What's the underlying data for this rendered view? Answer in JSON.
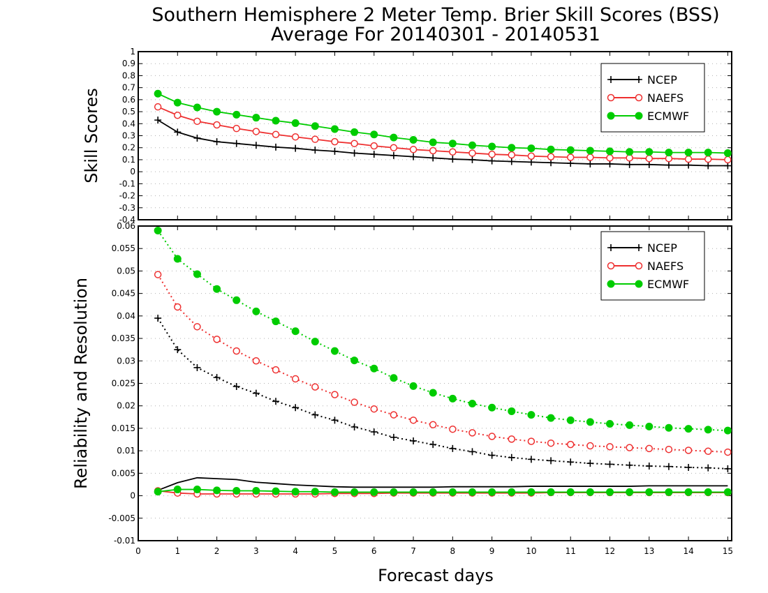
{
  "figure": {
    "title_line1": "Southern Hemisphere 2 Meter Temp. Brier Skill Scores (BSS)",
    "title_line2": "Average For 20140301 - 20140531",
    "xlabel": "Forecast days",
    "colors": {
      "NCEP": "#000000",
      "NAEFS": "#ee3030",
      "ECMWF": "#00cc00"
    }
  },
  "chart_data": [
    {
      "type": "line",
      "ylabel": "Skill Scores",
      "xlim": [
        0,
        15.1
      ],
      "ylim": [
        -0.4,
        1
      ],
      "x_ticks": [
        0,
        1,
        2,
        3,
        4,
        5,
        6,
        7,
        8,
        9,
        10,
        11,
        12,
        13,
        14,
        15
      ],
      "y_ticks": [
        "1",
        "0.9",
        "0.8",
        "0.7",
        "0.6",
        "0.5",
        "0.4",
        "0.3",
        "0.2",
        "0.1",
        "0",
        "-0.1",
        "-0.2",
        "-0.3",
        "-0.4"
      ],
      "y_tick_values": [
        1,
        0.9,
        0.8,
        0.7,
        0.6,
        0.5,
        0.4,
        0.3,
        0.2,
        0.1,
        0,
        -0.1,
        -0.2,
        -0.3,
        -0.4
      ],
      "grid": true,
      "legend": {
        "placement": "top-right",
        "entries": [
          "NCEP",
          "NAEFS",
          "ECMWF"
        ]
      },
      "x": [
        0.5,
        1,
        1.5,
        2,
        2.5,
        3,
        3.5,
        4,
        4.5,
        5,
        5.5,
        6,
        6.5,
        7,
        7.5,
        8,
        8.5,
        9,
        9.5,
        10,
        10.5,
        11,
        11.5,
        12,
        12.5,
        13,
        13.5,
        14,
        14.5,
        15
      ],
      "series": [
        {
          "name": "NCEP",
          "marker": "plus",
          "line": "solid",
          "values": [
            0.43,
            0.33,
            0.28,
            0.25,
            0.235,
            0.22,
            0.205,
            0.195,
            0.18,
            0.17,
            0.155,
            0.145,
            0.135,
            0.125,
            0.115,
            0.105,
            0.1,
            0.09,
            0.085,
            0.08,
            0.075,
            0.07,
            0.065,
            0.065,
            0.06,
            0.06,
            0.055,
            0.055,
            0.05,
            0.05
          ]
        },
        {
          "name": "NAEFS",
          "marker": "open-circle",
          "line": "solid",
          "values": [
            0.54,
            0.47,
            0.42,
            0.39,
            0.36,
            0.335,
            0.31,
            0.29,
            0.27,
            0.25,
            0.235,
            0.215,
            0.2,
            0.185,
            0.175,
            0.165,
            0.155,
            0.145,
            0.14,
            0.13,
            0.125,
            0.12,
            0.12,
            0.115,
            0.115,
            0.11,
            0.11,
            0.105,
            0.105,
            0.1
          ]
        },
        {
          "name": "ECMWF",
          "marker": "filled-circle",
          "line": "solid",
          "values": [
            0.65,
            0.575,
            0.535,
            0.5,
            0.475,
            0.45,
            0.425,
            0.405,
            0.38,
            0.355,
            0.33,
            0.31,
            0.285,
            0.265,
            0.245,
            0.235,
            0.22,
            0.21,
            0.2,
            0.195,
            0.185,
            0.18,
            0.175,
            0.17,
            0.165,
            0.165,
            0.16,
            0.16,
            0.16,
            0.155
          ]
        }
      ]
    },
    {
      "type": "line",
      "ylabel": "Reliability and Resolution",
      "xlim": [
        0,
        15.1
      ],
      "ylim": [
        -0.01,
        0.06
      ],
      "x_ticks": [
        0,
        1,
        2,
        3,
        4,
        5,
        6,
        7,
        8,
        9,
        10,
        11,
        12,
        13,
        14,
        15
      ],
      "y_ticks": [
        "0.06",
        "0.055",
        "0.05",
        "0.045",
        "0.04",
        "0.035",
        "0.03",
        "0.025",
        "0.02",
        "0.015",
        "0.01",
        "0.005",
        "0",
        "-0.005",
        "-0.01"
      ],
      "y_tick_values": [
        0.06,
        0.055,
        0.05,
        0.045,
        0.04,
        0.035,
        0.03,
        0.025,
        0.02,
        0.015,
        0.01,
        0.005,
        0,
        -0.005,
        -0.01
      ],
      "grid": true,
      "legend": {
        "placement": "top-right",
        "entries": [
          "NCEP",
          "NAEFS",
          "ECMWF"
        ]
      },
      "x": [
        0.5,
        1,
        1.5,
        2,
        2.5,
        3,
        3.5,
        4,
        4.5,
        5,
        5.5,
        6,
        6.5,
        7,
        7.5,
        8,
        8.5,
        9,
        9.5,
        10,
        10.5,
        11,
        11.5,
        12,
        12.5,
        13,
        13.5,
        14,
        14.5,
        15
      ],
      "series": [
        {
          "name": "NCEP",
          "marker": "plus",
          "line": "dotted",
          "role": "resolution",
          "values": [
            0.0395,
            0.0325,
            0.0285,
            0.0263,
            0.0243,
            0.0228,
            0.021,
            0.0196,
            0.018,
            0.0168,
            0.0153,
            0.0142,
            0.013,
            0.0122,
            0.0114,
            0.0105,
            0.0098,
            0.009,
            0.0085,
            0.0081,
            0.0078,
            0.0075,
            0.0072,
            0.007,
            0.0068,
            0.0066,
            0.0065,
            0.0063,
            0.0062,
            0.006
          ]
        },
        {
          "name": "NAEFS",
          "marker": "open-circle",
          "line": "dotted",
          "role": "resolution",
          "values": [
            0.0492,
            0.042,
            0.0376,
            0.0348,
            0.0322,
            0.03,
            0.028,
            0.026,
            0.0242,
            0.0225,
            0.0208,
            0.0193,
            0.018,
            0.0168,
            0.0158,
            0.0148,
            0.014,
            0.0132,
            0.0126,
            0.0121,
            0.0117,
            0.0114,
            0.0111,
            0.0109,
            0.0107,
            0.0105,
            0.0103,
            0.0101,
            0.0099,
            0.0097
          ]
        },
        {
          "name": "ECMWF",
          "marker": "filled-circle",
          "line": "dotted",
          "role": "resolution",
          "values": [
            0.059,
            0.0527,
            0.0493,
            0.046,
            0.0435,
            0.041,
            0.0388,
            0.0366,
            0.0343,
            0.0322,
            0.0301,
            0.0283,
            0.0262,
            0.0244,
            0.0229,
            0.0216,
            0.0205,
            0.0196,
            0.0188,
            0.018,
            0.0173,
            0.0168,
            0.0164,
            0.016,
            0.0157,
            0.0154,
            0.0151,
            0.0149,
            0.0147,
            0.0145
          ]
        },
        {
          "name": "NCEP",
          "marker": "none",
          "line": "solid",
          "role": "reliability",
          "values": [
            0.0012,
            0.0029,
            0.004,
            0.0038,
            0.0036,
            0.003,
            0.0027,
            0.0024,
            0.0022,
            0.002,
            0.0019,
            0.0019,
            0.0019,
            0.0019,
            0.0019,
            0.002,
            0.002,
            0.002,
            0.002,
            0.0021,
            0.0021,
            0.0021,
            0.0021,
            0.0021,
            0.0021,
            0.0022,
            0.0022,
            0.0022,
            0.0022,
            0.0022
          ]
        },
        {
          "name": "NAEFS",
          "marker": "open-circle",
          "line": "solid",
          "role": "reliability",
          "values": [
            0.0011,
            0.0006,
            0.0004,
            0.0004,
            0.0004,
            0.0004,
            0.0004,
            0.0004,
            0.0004,
            0.0005,
            0.0005,
            0.0005,
            0.0006,
            0.0006,
            0.0006,
            0.0006,
            0.0006,
            0.0006,
            0.0006,
            0.0006,
            0.0007,
            0.0007,
            0.0007,
            0.0007,
            0.0007,
            0.0007,
            0.0007,
            0.0007,
            0.0007,
            0.0007
          ]
        },
        {
          "name": "ECMWF",
          "marker": "filled-circle",
          "line": "solid",
          "role": "reliability",
          "values": [
            0.0009,
            0.0014,
            0.0014,
            0.0012,
            0.0011,
            0.0011,
            0.001,
            0.0009,
            0.0009,
            0.0008,
            0.0008,
            0.0008,
            0.0008,
            0.0008,
            0.0008,
            0.0008,
            0.0008,
            0.0008,
            0.0008,
            0.0008,
            0.0008,
            0.0008,
            0.0008,
            0.0008,
            0.0008,
            0.0008,
            0.0008,
            0.0008,
            0.0008,
            0.0008
          ]
        }
      ]
    }
  ]
}
